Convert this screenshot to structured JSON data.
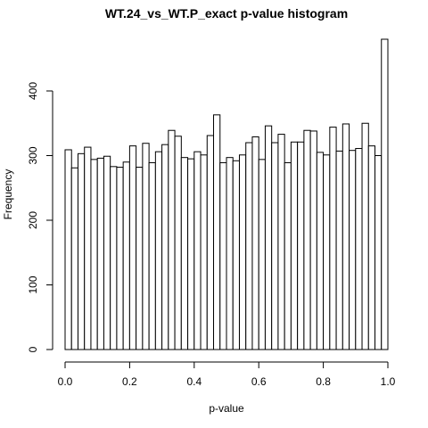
{
  "chart_data": {
    "type": "bar",
    "title": "WT.24_vs_WT.P_exact p-value histogram",
    "xlabel": "p-value",
    "ylabel": "Frequency",
    "xlim": [
      0,
      1
    ],
    "ylim": [
      0,
      480
    ],
    "x_ticks": [
      0.0,
      0.2,
      0.4,
      0.6,
      0.8,
      1.0
    ],
    "x_tick_labels": [
      "0.0",
      "0.2",
      "0.4",
      "0.6",
      "0.8",
      "1.0"
    ],
    "y_ticks": [
      0,
      100,
      200,
      300,
      400
    ],
    "y_tick_labels": [
      "0",
      "100",
      "200",
      "300",
      "400"
    ],
    "bin_width": 0.02,
    "bin_starts": [
      0.0,
      0.02,
      0.04,
      0.06,
      0.08,
      0.1,
      0.12,
      0.14,
      0.16,
      0.18,
      0.2,
      0.22,
      0.24,
      0.26,
      0.28,
      0.3,
      0.32,
      0.34,
      0.36,
      0.38,
      0.4,
      0.42,
      0.44,
      0.46,
      0.48,
      0.5,
      0.52,
      0.54,
      0.56,
      0.58,
      0.6,
      0.62,
      0.64,
      0.66,
      0.68,
      0.7,
      0.72,
      0.74,
      0.76,
      0.78,
      0.8,
      0.82,
      0.84,
      0.86,
      0.88,
      0.9,
      0.92,
      0.94,
      0.96,
      0.98
    ],
    "values": [
      309,
      281,
      303,
      313,
      294,
      296,
      299,
      283,
      282,
      290,
      315,
      282,
      319,
      289,
      306,
      317,
      339,
      330,
      297,
      295,
      306,
      301,
      331,
      363,
      289,
      297,
      292,
      301,
      320,
      329,
      294,
      346,
      320,
      333,
      289,
      321,
      321,
      339,
      338,
      305,
      301,
      344,
      307,
      349,
      308,
      311,
      350,
      315,
      300,
      480
    ],
    "grid": false,
    "legend": "none",
    "bar_fill": "#ffffff",
    "bar_stroke": "#000000"
  }
}
